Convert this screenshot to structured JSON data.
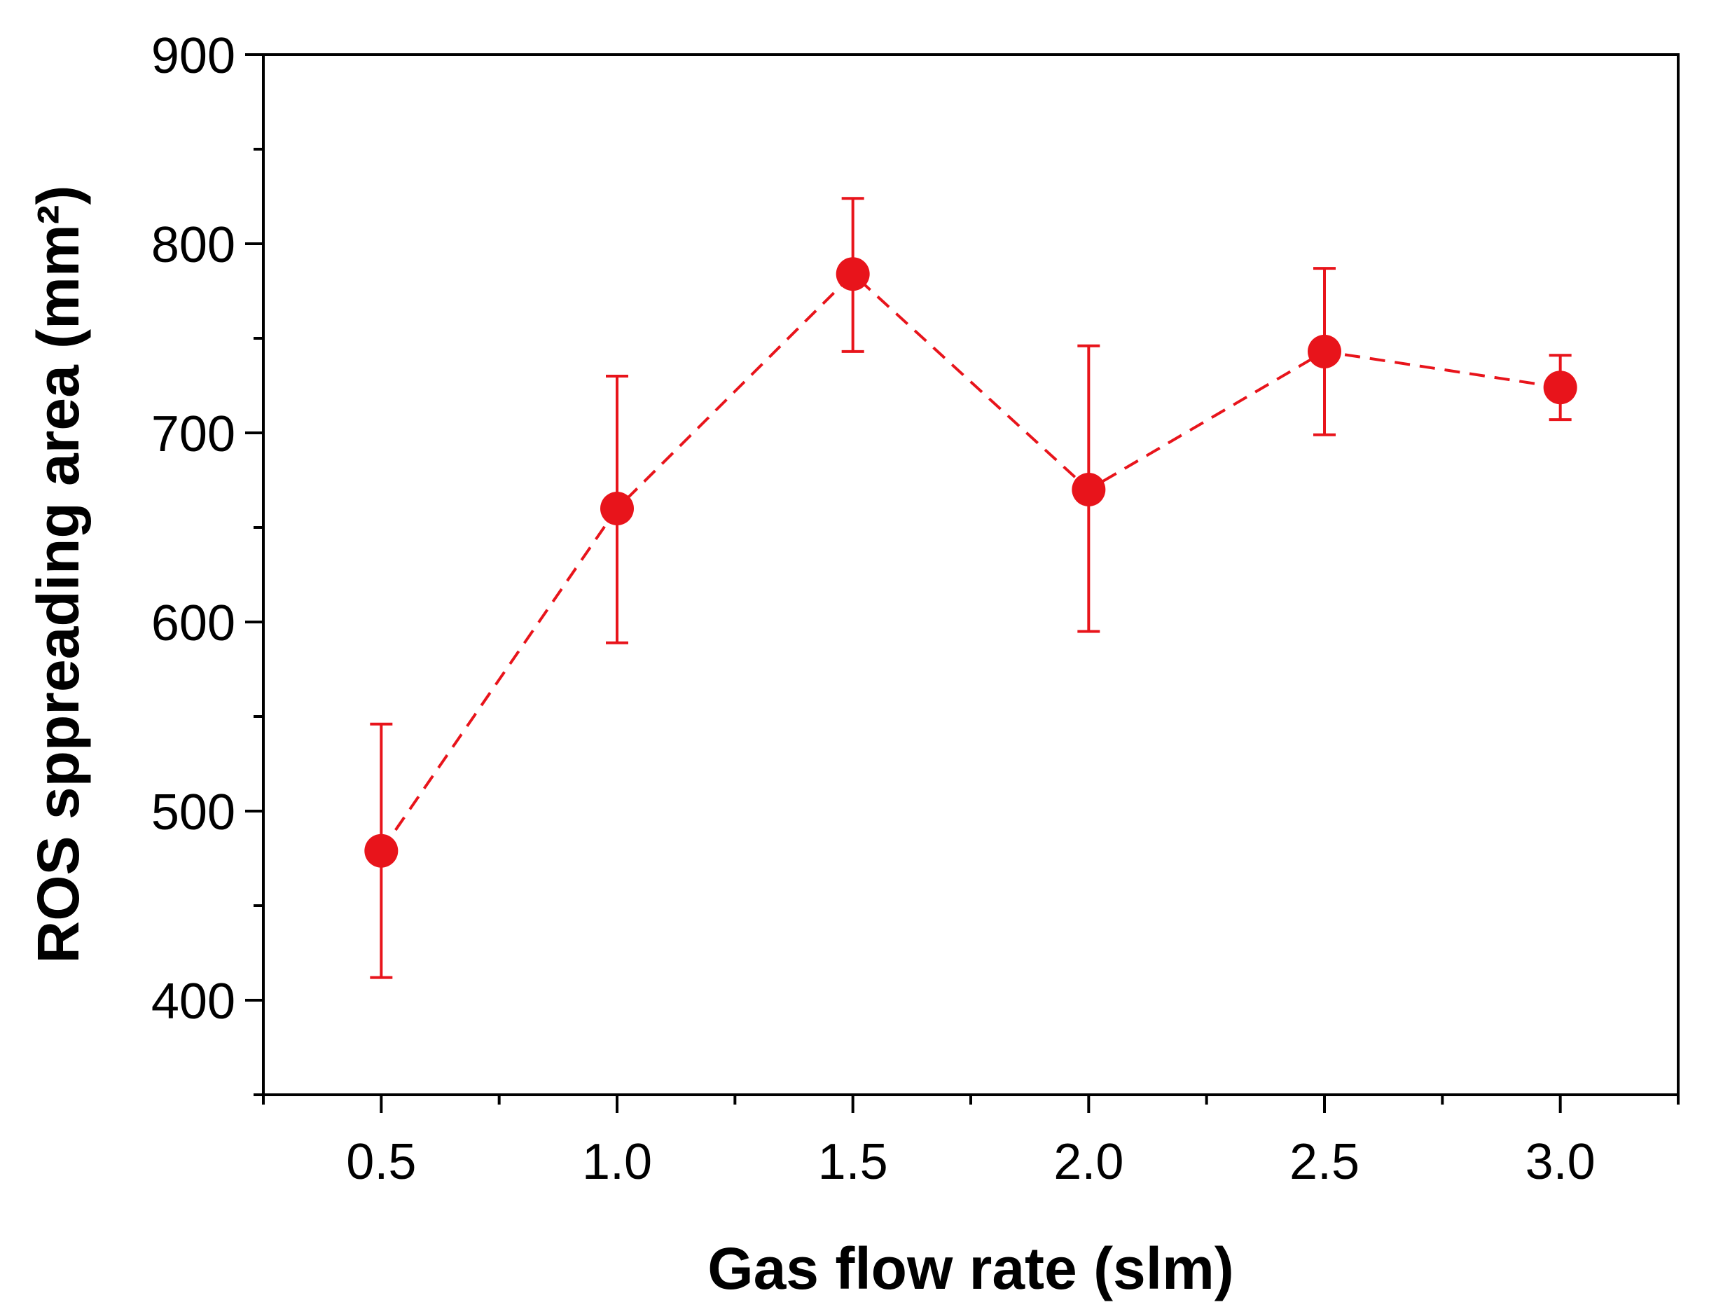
{
  "chart_data": {
    "type": "scatter",
    "title": "",
    "xlabel": "Gas flow rate (slm)",
    "ylabel": "ROS sppreading area (mm²)",
    "xlim": [
      0.25,
      3.25
    ],
    "ylim": [
      350,
      900
    ],
    "x_ticks": [
      0.5,
      1.0,
      1.5,
      2.0,
      2.5,
      3.0
    ],
    "x_tick_labels": [
      "0.5",
      "1.0",
      "1.5",
      "2.0",
      "2.5",
      "3.0"
    ],
    "y_ticks": [
      400,
      500,
      600,
      700,
      800,
      900
    ],
    "y_tick_labels": [
      "400",
      "500",
      "600",
      "700",
      "800",
      "900"
    ],
    "grid": false,
    "series": [
      {
        "name": "ROS spreading area",
        "color": "#e8141b",
        "line_style": "dashed",
        "marker": "circle",
        "x": [
          0.5,
          1.0,
          1.5,
          2.0,
          2.5,
          3.0
        ],
        "y": [
          479,
          660,
          784,
          670,
          743,
          724
        ],
        "err_low": [
          412,
          589,
          743,
          595,
          699,
          707
        ],
        "err_high": [
          546,
          730,
          824,
          746,
          787,
          741
        ]
      }
    ]
  }
}
